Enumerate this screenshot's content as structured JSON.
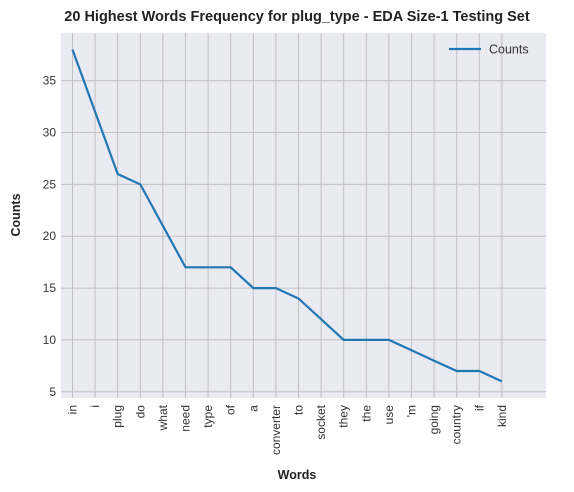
{
  "chart_data": {
    "type": "line",
    "title": "20 Highest Words Frequency for plug_type - EDA Size-1 Testing Set",
    "xlabel": "Words",
    "ylabel": "Counts",
    "categories": [
      "in",
      "i",
      "plug",
      "do",
      "what",
      "need",
      "type",
      "of",
      "a",
      "converter",
      "to",
      "socket",
      "they",
      "the",
      "use",
      "'m",
      "going",
      "country",
      "if",
      "kind"
    ],
    "series": [
      {
        "name": "Counts",
        "values": [
          38,
          32,
          26,
          25,
          21,
          17,
          17,
          17,
          15,
          15,
          14,
          12,
          10,
          10,
          10,
          9,
          8,
          7,
          7,
          6
        ]
      }
    ],
    "ylim": [
      4.4,
      39.6
    ],
    "yticks": [
      5,
      10,
      15,
      20,
      25,
      30,
      35
    ],
    "grid": true,
    "legend": "top-right",
    "colors": {
      "line": "#1f77b4",
      "background": "#eaeaf2",
      "grid": "#c0c0c0"
    }
  }
}
